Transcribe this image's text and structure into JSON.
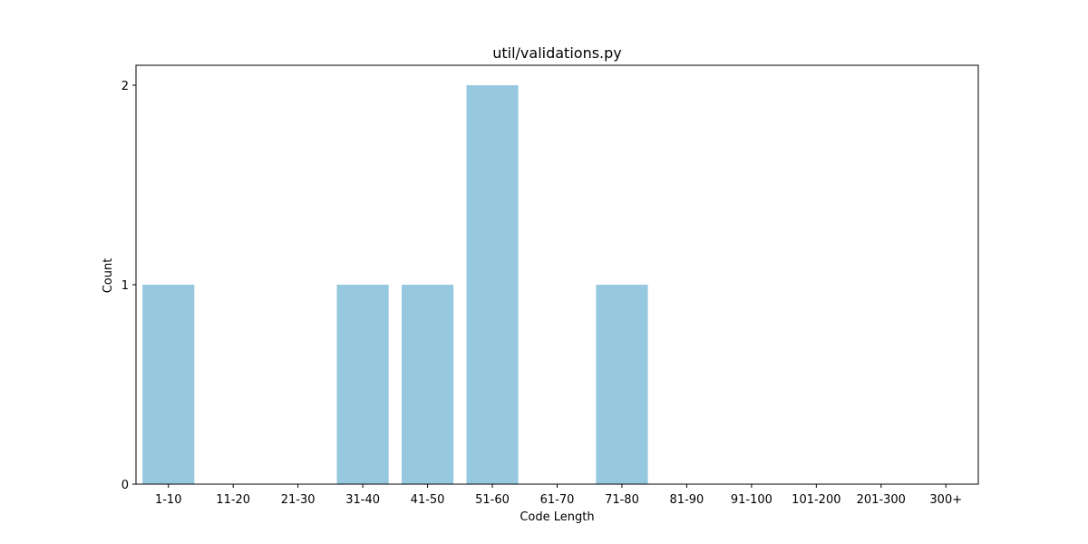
{
  "chart_data": {
    "type": "bar",
    "title": "util/validations.py",
    "xlabel": "Code Length",
    "ylabel": "Count",
    "categories": [
      "1-10",
      "11-20",
      "21-30",
      "31-40",
      "41-50",
      "51-60",
      "61-70",
      "71-80",
      "81-90",
      "91-100",
      "101-200",
      "201-300",
      "300+"
    ],
    "values": [
      1,
      0,
      0,
      1,
      1,
      2,
      0,
      1,
      0,
      0,
      0,
      0,
      0
    ],
    "ylim": [
      0,
      2.1
    ],
    "yticks": [
      0,
      1,
      2
    ],
    "bar_color": "#96c9df",
    "grid": false,
    "legend": "none"
  }
}
